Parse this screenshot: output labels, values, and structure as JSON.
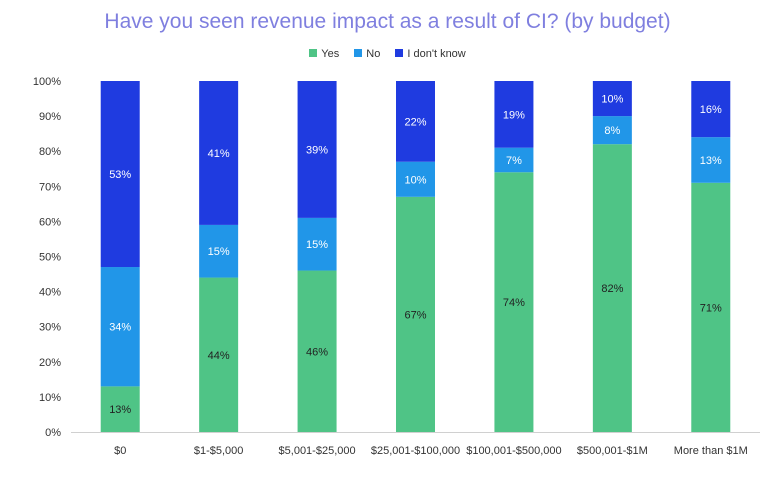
{
  "chart_data": {
    "type": "bar",
    "stacked": true,
    "title": "Have you seen revenue impact as a result of CI? (by budget)",
    "xlabel": "",
    "ylabel": "",
    "categories": [
      "$0",
      "$1-$5,000",
      "$5,001-$25,000",
      "$25,001-$100,000",
      "$100,001-$500,000",
      "$500,001-$1M",
      "More than $1M"
    ],
    "series": [
      {
        "name": "Yes",
        "color": "#4fc486",
        "values": [
          13,
          44,
          46,
          67,
          74,
          82,
          71
        ],
        "labels": [
          "13%",
          "44%",
          "46%",
          "67%",
          "74%",
          "82%",
          "71%"
        ],
        "label_color": "#222222"
      },
      {
        "name": "No",
        "color": "#2196e8",
        "values": [
          34,
          15,
          15,
          10,
          7,
          8,
          13
        ],
        "labels": [
          "34%",
          "15%",
          "15%",
          "10%",
          "7%",
          "8%",
          "13%"
        ],
        "label_color": "#ffffff"
      },
      {
        "name": "I don't know",
        "color": "#1f3be0",
        "values": [
          53,
          41,
          39,
          22,
          19,
          10,
          16
        ],
        "labels": [
          "53%",
          "41%",
          "39%",
          "22%",
          "19%",
          "10%",
          "16%"
        ],
        "label_color": "#ffffff"
      }
    ],
    "ylim": [
      0,
      100
    ],
    "yticks": [
      "0%",
      "10%",
      "20%",
      "30%",
      "40%",
      "50%",
      "60%",
      "70%",
      "80%",
      "90%",
      "100%"
    ],
    "grid": false,
    "legend_position": "top"
  }
}
